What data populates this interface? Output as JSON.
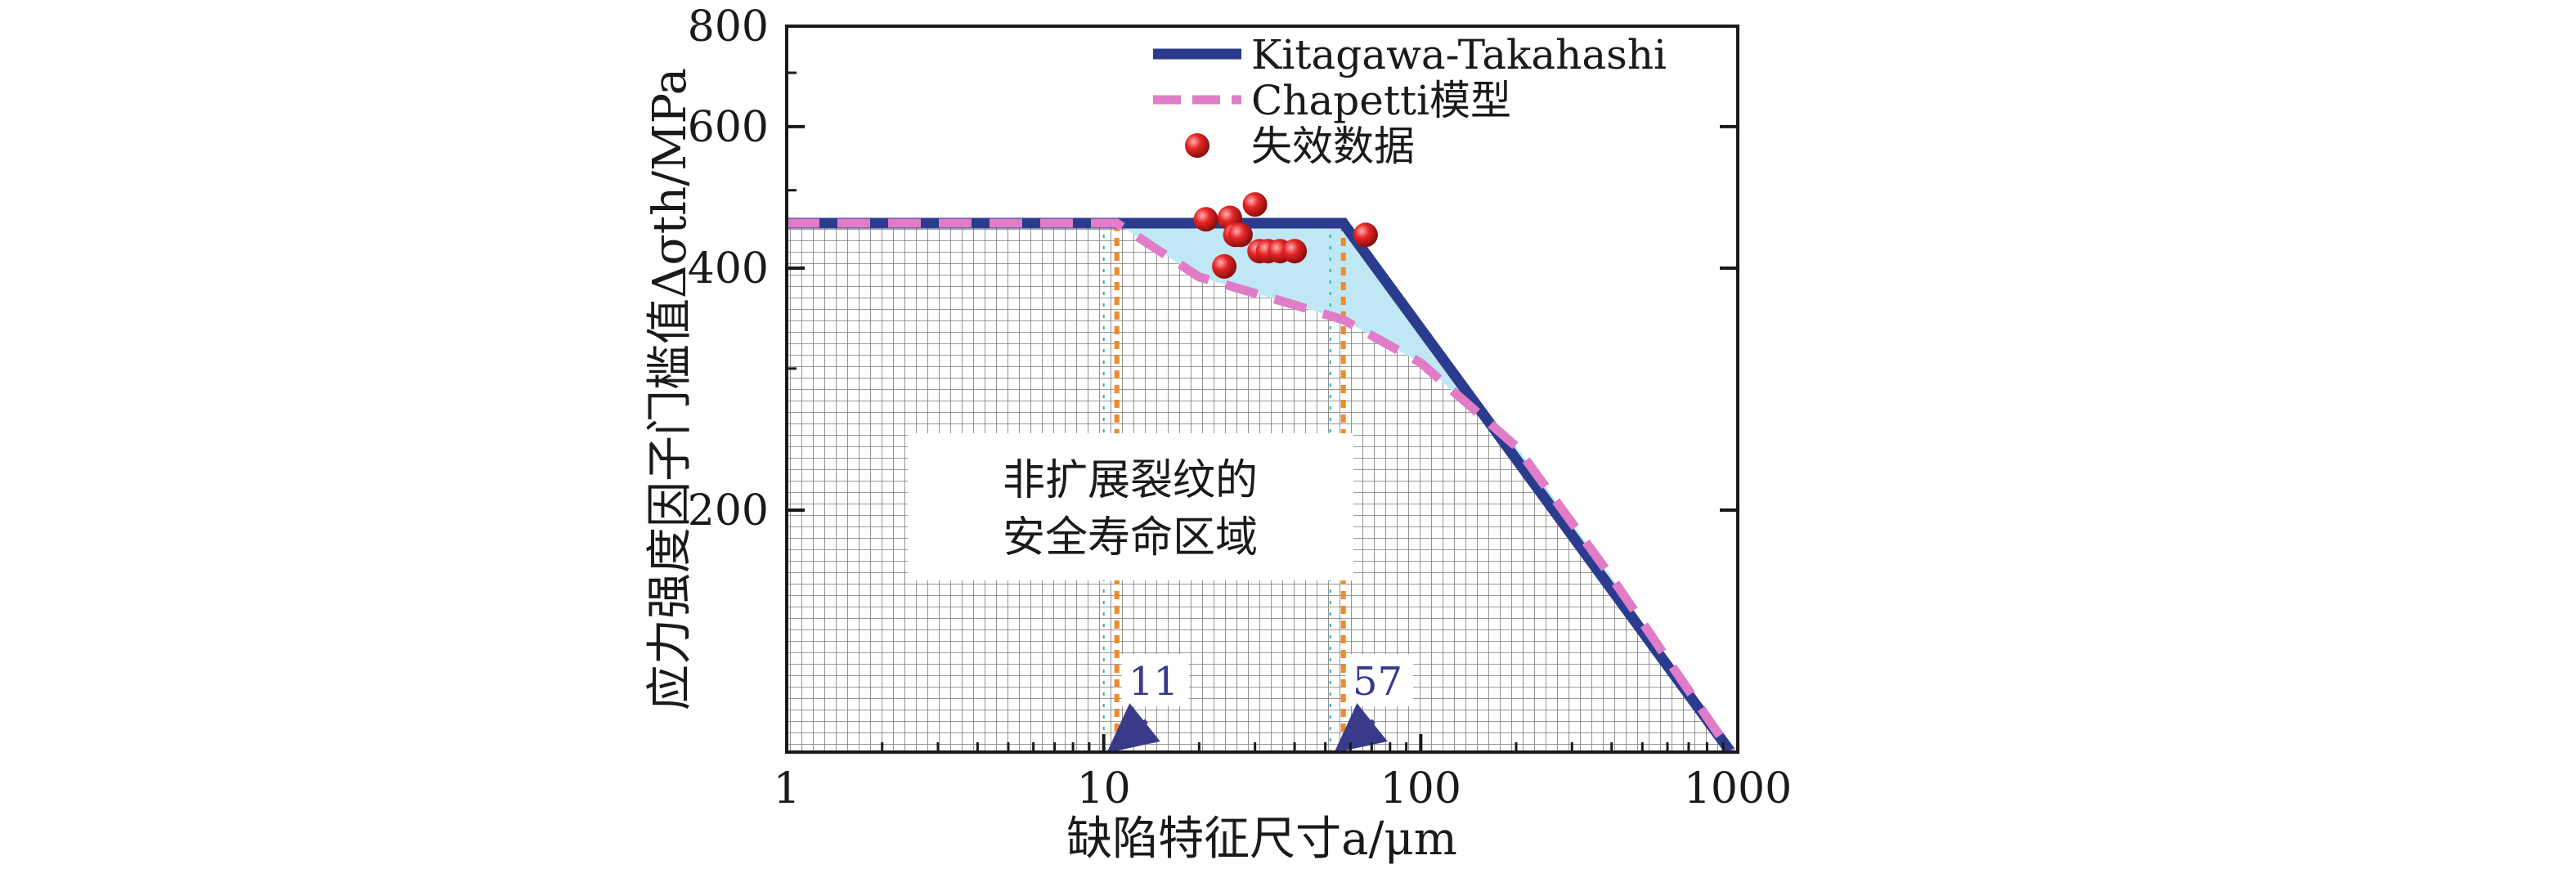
{
  "chart_data": {
    "type": "line",
    "x_scale": "log",
    "y_scale": "log",
    "xlim": [
      1,
      1000
    ],
    "ylim": [
      100,
      800
    ],
    "xlabel": "缺陷特征尺寸a/μm",
    "ylabel": "应力强度因子门槛值Δσth/MPa",
    "x_ticks": [
      1,
      10,
      100,
      1000
    ],
    "x_tick_labels": [
      "1",
      "10",
      "100",
      "1000"
    ],
    "y_ticks": [
      200,
      400,
      600,
      800
    ],
    "y_tick_labels": [
      "200",
      "400",
      "600",
      "800"
    ],
    "legend_position": "top-right",
    "series": [
      {
        "name": "Kitagawa-Takahashi",
        "kind": "line",
        "style": "solid",
        "color": "#2b3c8e",
        "x": [
          1,
          57,
          950
        ],
        "y": [
          455,
          455,
          100
        ]
      },
      {
        "name": "Chapetti模型",
        "kind": "line",
        "style": "dashed",
        "color": "#e07cc8",
        "x": [
          1,
          11,
          20,
          40,
          57,
          100,
          200,
          400,
          950
        ],
        "y": [
          455,
          455,
          390,
          360,
          345,
          305,
          240,
          165,
          100
        ]
      },
      {
        "name": "失效数据",
        "kind": "scatter",
        "color": "#d91f1f",
        "x": [
          21,
          25,
          26,
          27,
          24,
          31,
          33,
          36,
          40,
          30,
          67
        ],
        "y": [
          460,
          462,
          440,
          440,
          402,
          420,
          420,
          420,
          420,
          480,
          440
        ]
      }
    ],
    "annotations": [
      {
        "text": "非扩展裂纹的",
        "x": 10,
        "y": 235
      },
      {
        "text": "安全寿命区域",
        "x": 10,
        "y": 200
      },
      {
        "text": "11",
        "x": 11,
        "y": 125
      },
      {
        "text": "57",
        "x": 57,
        "y": 125
      }
    ],
    "vertical_markers": [
      11,
      57
    ],
    "grid": false,
    "hatched_region": "below Chapetti curve",
    "shaded_region_color": "#bfe8f4"
  },
  "colors": {
    "kt_line": "#2b3c8e",
    "chapetti_line": "#e07cc8",
    "points": "#d91f1f",
    "marker_line": "#f08a2a",
    "shade": "#bfe8f4",
    "arrow": "#3a3a8a"
  }
}
